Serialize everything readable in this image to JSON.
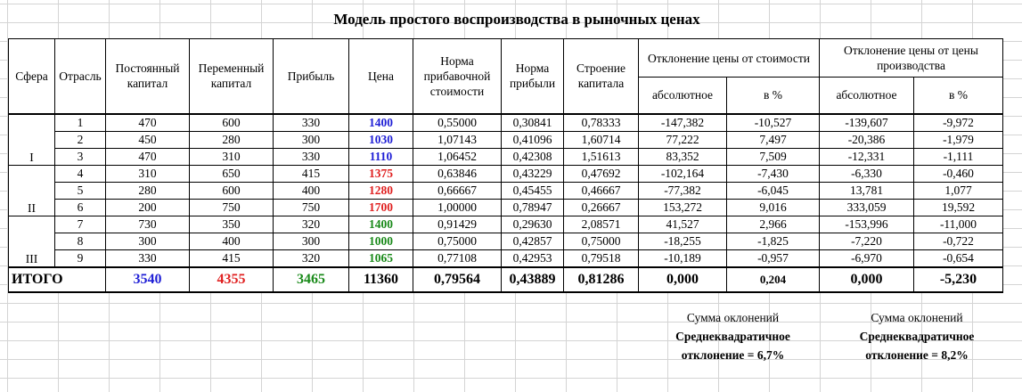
{
  "title": "Модель простого воспроизводства в рыночных ценах",
  "headers": {
    "sphere": "Сфера",
    "industry": "Отрасль",
    "constant_capital": "Постоянный капитал",
    "variable_capital": "Переменный капитал",
    "profit": "Прибыль",
    "price": "Цена",
    "surplus_rate": "Норма прибавочной стоимости",
    "profit_rate": "Норма прибыли",
    "capital_structure": "Строение капитала",
    "dev_value": "Отклонение цены от стоимости",
    "dev_prod": "Отклонение цены от цены производства",
    "absolute": "абсолютное",
    "percent": "в %"
  },
  "spheres": [
    "I",
    "II",
    "III"
  ],
  "rows": [
    {
      "n": "1",
      "c": "470",
      "v": "600",
      "p": "330",
      "price": "1400",
      "m": "0,55000",
      "r": "0,30841",
      "s": "0,78333",
      "a1": "-147,382",
      "p1": "-10,527",
      "a2": "-139,607",
      "p2": "-9,972",
      "color": "blue"
    },
    {
      "n": "2",
      "c": "450",
      "v": "280",
      "p": "300",
      "price": "1030",
      "m": "1,07143",
      "r": "0,41096",
      "s": "1,60714",
      "a1": "77,222",
      "p1": "7,497",
      "a2": "-20,386",
      "p2": "-1,979",
      "color": "blue"
    },
    {
      "n": "3",
      "c": "470",
      "v": "310",
      "p": "330",
      "price": "1110",
      "m": "1,06452",
      "r": "0,42308",
      "s": "1,51613",
      "a1": "83,352",
      "p1": "7,509",
      "a2": "-12,331",
      "p2": "-1,111",
      "color": "blue"
    },
    {
      "n": "4",
      "c": "310",
      "v": "650",
      "p": "415",
      "price": "1375",
      "m": "0,63846",
      "r": "0,43229",
      "s": "0,47692",
      "a1": "-102,164",
      "p1": "-7,430",
      "a2": "-6,330",
      "p2": "-0,460",
      "color": "red"
    },
    {
      "n": "5",
      "c": "280",
      "v": "600",
      "p": "400",
      "price": "1280",
      "m": "0,66667",
      "r": "0,45455",
      "s": "0,46667",
      "a1": "-77,382",
      "p1": "-6,045",
      "a2": "13,781",
      "p2": "1,077",
      "color": "red"
    },
    {
      "n": "6",
      "c": "200",
      "v": "750",
      "p": "750",
      "price": "1700",
      "m": "1,00000",
      "r": "0,78947",
      "s": "0,26667",
      "a1": "153,272",
      "p1": "9,016",
      "a2": "333,059",
      "p2": "19,592",
      "color": "red"
    },
    {
      "n": "7",
      "c": "730",
      "v": "350",
      "p": "320",
      "price": "1400",
      "m": "0,91429",
      "r": "0,29630",
      "s": "2,08571",
      "a1": "41,527",
      "p1": "2,966",
      "a2": "-153,996",
      "p2": "-11,000",
      "color": "green"
    },
    {
      "n": "8",
      "c": "300",
      "v": "400",
      "p": "300",
      "price": "1000",
      "m": "0,75000",
      "r": "0,42857",
      "s": "0,75000",
      "a1": "-18,255",
      "p1": "-1,825",
      "a2": "-7,220",
      "p2": "-0,722",
      "color": "green"
    },
    {
      "n": "9",
      "c": "330",
      "v": "415",
      "p": "320",
      "price": "1065",
      "m": "0,77108",
      "r": "0,42953",
      "s": "0,79518",
      "a1": "-10,189",
      "p1": "-0,957",
      "a2": "-6,970",
      "p2": "-0,654",
      "color": "green"
    }
  ],
  "total": {
    "label": "ИТОГО",
    "c": "3540",
    "v": "4355",
    "p": "3465",
    "price": "11360",
    "m": "0,79564",
    "r": "0,43889",
    "s": "0,81286",
    "a1": "0,000",
    "p1": "0,204",
    "a2": "0,000",
    "p2": "-5,230"
  },
  "notes": {
    "sum_label_1": "Сумма оклонений",
    "sum_label_2": "Сумма оклонений",
    "rms_1_line1": "Среднеквадратичное",
    "rms_1_line2": "отклонение = 6,7%",
    "rms_2_line1": "Среднеквадратичное",
    "rms_2_line2": "отклонение = 8,2%"
  },
  "colors": {
    "blue": "#1f1fd6",
    "red": "#e02020",
    "green": "#1a8a1a",
    "grid": "#d4d4d4"
  }
}
